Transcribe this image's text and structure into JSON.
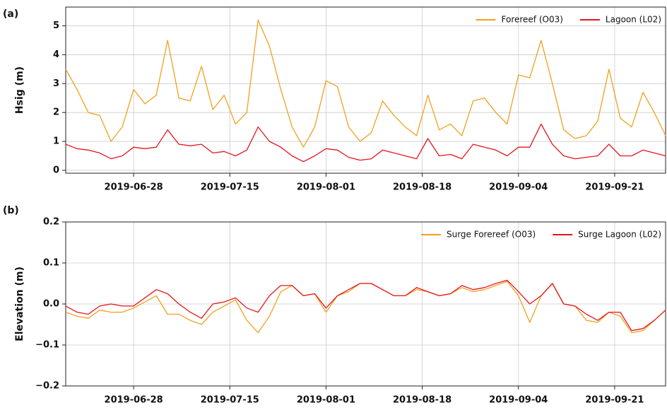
{
  "chart_data": [
    {
      "type": "line",
      "panel_label": "(a)",
      "ylabel": "Hsig (m)",
      "x": [
        "2019-06-16",
        "2019-06-18",
        "2019-06-20",
        "2019-06-22",
        "2019-06-24",
        "2019-06-26",
        "2019-06-28",
        "2019-06-30",
        "2019-07-02",
        "2019-07-04",
        "2019-07-06",
        "2019-07-08",
        "2019-07-10",
        "2019-07-12",
        "2019-07-14",
        "2019-07-16",
        "2019-07-18",
        "2019-07-20",
        "2019-07-22",
        "2019-07-24",
        "2019-07-26",
        "2019-07-28",
        "2019-07-30",
        "2019-08-01",
        "2019-08-03",
        "2019-08-05",
        "2019-08-07",
        "2019-08-09",
        "2019-08-11",
        "2019-08-13",
        "2019-08-15",
        "2019-08-17",
        "2019-08-19",
        "2019-08-21",
        "2019-08-23",
        "2019-08-25",
        "2019-08-27",
        "2019-08-29",
        "2019-08-31",
        "2019-09-02",
        "2019-09-04",
        "2019-09-06",
        "2019-09-08",
        "2019-09-10",
        "2019-09-12",
        "2019-09-14",
        "2019-09-16",
        "2019-09-18",
        "2019-09-20",
        "2019-09-22",
        "2019-09-24",
        "2019-09-26",
        "2019-09-28",
        "2019-09-30"
      ],
      "series": [
        {
          "name": "Forereef (O03)",
          "color": "#f0a11e",
          "values": [
            3.5,
            2.8,
            2.0,
            1.9,
            1.0,
            1.5,
            2.8,
            2.3,
            2.6,
            4.5,
            2.5,
            2.4,
            3.6,
            2.1,
            2.6,
            1.6,
            2.0,
            5.2,
            4.3,
            2.8,
            1.5,
            0.8,
            1.5,
            3.1,
            2.9,
            1.5,
            1.0,
            1.3,
            2.4,
            1.9,
            1.5,
            1.2,
            2.6,
            1.4,
            1.6,
            1.2,
            2.4,
            2.5,
            2.0,
            1.6,
            3.3,
            3.2,
            4.5,
            3.0,
            1.4,
            1.1,
            1.2,
            1.7,
            3.5,
            1.8,
            1.5,
            2.7,
            2.0,
            1.2
          ]
        },
        {
          "name": "Lagoon (L02)",
          "color": "#e3161e",
          "values": [
            0.9,
            0.75,
            0.7,
            0.6,
            0.4,
            0.5,
            0.8,
            0.75,
            0.8,
            1.4,
            0.9,
            0.85,
            0.9,
            0.6,
            0.65,
            0.5,
            0.7,
            1.5,
            1.0,
            0.8,
            0.5,
            0.3,
            0.5,
            0.75,
            0.7,
            0.45,
            0.35,
            0.4,
            0.7,
            0.6,
            0.5,
            0.4,
            1.1,
            0.5,
            0.55,
            0.4,
            0.9,
            0.8,
            0.7,
            0.5,
            0.8,
            0.8,
            1.6,
            0.9,
            0.5,
            0.4,
            0.45,
            0.5,
            0.9,
            0.5,
            0.5,
            0.7,
            0.6,
            0.5
          ]
        }
      ],
      "xlim": [
        "2019-06-16",
        "2019-09-30"
      ],
      "xticks": [
        "2019-06-28",
        "2019-07-15",
        "2019-08-01",
        "2019-08-18",
        "2019-09-04",
        "2019-09-21"
      ],
      "ylim": [
        -0.1,
        5.65
      ],
      "yticks": [
        0,
        1,
        2,
        3,
        4,
        5
      ],
      "grid": true,
      "legend": "upper right"
    },
    {
      "type": "line",
      "panel_label": "(b)",
      "ylabel": "Elevation (m)",
      "x": [
        "2019-06-16",
        "2019-06-18",
        "2019-06-20",
        "2019-06-22",
        "2019-06-24",
        "2019-06-26",
        "2019-06-28",
        "2019-06-30",
        "2019-07-02",
        "2019-07-04",
        "2019-07-06",
        "2019-07-08",
        "2019-07-10",
        "2019-07-12",
        "2019-07-14",
        "2019-07-16",
        "2019-07-18",
        "2019-07-20",
        "2019-07-22",
        "2019-07-24",
        "2019-07-26",
        "2019-07-28",
        "2019-07-30",
        "2019-08-01",
        "2019-08-03",
        "2019-08-05",
        "2019-08-07",
        "2019-08-09",
        "2019-08-11",
        "2019-08-13",
        "2019-08-15",
        "2019-08-17",
        "2019-08-19",
        "2019-08-21",
        "2019-08-23",
        "2019-08-25",
        "2019-08-27",
        "2019-08-29",
        "2019-08-31",
        "2019-09-02",
        "2019-09-04",
        "2019-09-06",
        "2019-09-08",
        "2019-09-10",
        "2019-09-12",
        "2019-09-14",
        "2019-09-16",
        "2019-09-18",
        "2019-09-20",
        "2019-09-22",
        "2019-09-24",
        "2019-09-26",
        "2019-09-28",
        "2019-09-30"
      ],
      "series": [
        {
          "name": "Surge Forereef (O03)",
          "color": "#f0a11e",
          "values": [
            -0.02,
            -0.03,
            -0.035,
            -0.015,
            -0.02,
            -0.02,
            -0.01,
            0.005,
            0.02,
            -0.025,
            -0.025,
            -0.04,
            -0.05,
            -0.02,
            -0.005,
            0.01,
            -0.04,
            -0.07,
            -0.03,
            0.03,
            0.045,
            0.02,
            0.025,
            -0.02,
            0.02,
            0.03,
            0.05,
            0.05,
            0.035,
            0.02,
            0.02,
            0.035,
            0.03,
            0.02,
            0.025,
            0.04,
            0.03,
            0.035,
            0.045,
            0.055,
            0.02,
            -0.045,
            0.02,
            0.05,
            0.0,
            -0.005,
            -0.04,
            -0.045,
            -0.02,
            -0.03,
            -0.07,
            -0.065,
            -0.04,
            -0.015
          ]
        },
        {
          "name": "Surge Lagoon (L02)",
          "color": "#e3161e",
          "values": [
            -0.005,
            -0.02,
            -0.025,
            -0.005,
            0.0,
            -0.005,
            -0.005,
            0.015,
            0.035,
            0.025,
            0.0,
            -0.02,
            -0.035,
            0.0,
            0.005,
            0.015,
            -0.01,
            -0.02,
            0.02,
            0.045,
            0.045,
            0.02,
            0.025,
            -0.01,
            0.02,
            0.035,
            0.05,
            0.05,
            0.035,
            0.02,
            0.02,
            0.04,
            0.03,
            0.02,
            0.025,
            0.045,
            0.035,
            0.04,
            0.05,
            0.058,
            0.03,
            0.0,
            0.02,
            0.05,
            0.0,
            -0.005,
            -0.025,
            -0.04,
            -0.02,
            -0.02,
            -0.065,
            -0.06,
            -0.04,
            -0.015
          ]
        }
      ],
      "xlim": [
        "2019-06-16",
        "2019-09-30"
      ],
      "xticks": [
        "2019-06-28",
        "2019-07-15",
        "2019-08-01",
        "2019-08-18",
        "2019-09-04",
        "2019-09-21"
      ],
      "ylim": [
        -0.2,
        0.2
      ],
      "yticks": [
        {
          "value": -0.2,
          "label": "−0.2"
        },
        {
          "value": -0.1,
          "label": "−0.1"
        },
        {
          "value": 0,
          "label": "0.0"
        },
        0.1,
        0.2
      ],
      "grid": true,
      "legend": "upper right"
    }
  ]
}
